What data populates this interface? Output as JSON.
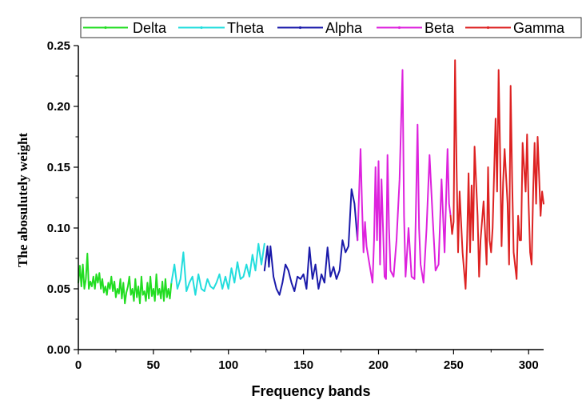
{
  "chart_data": {
    "type": "line",
    "xlabel": "Frequency bands",
    "ylabel": "The abosulutely weight",
    "xlim": [
      0,
      310
    ],
    "ylim": [
      0.0,
      0.25
    ],
    "xticks": [
      "0",
      "50",
      "100",
      "150",
      "200",
      "250",
      "300"
    ],
    "yticks": [
      "0.00",
      "0.05",
      "0.10",
      "0.15",
      "0.20",
      "0.25"
    ],
    "legend_position": "top",
    "grid": false,
    "series": [
      {
        "name": "Delta",
        "color": "#22dd22",
        "x": [
          0,
          1,
          2,
          3,
          4,
          5,
          6,
          7,
          8,
          9,
          10,
          11,
          12,
          13,
          14,
          15,
          16,
          17,
          18,
          19,
          20,
          21,
          22,
          23,
          24,
          25,
          26,
          27,
          28,
          29,
          30,
          31,
          32,
          33,
          34,
          35,
          36,
          37,
          38,
          39,
          40,
          41,
          42,
          43,
          44,
          45,
          46,
          47,
          48,
          49,
          50,
          51,
          52,
          53,
          54,
          55,
          56,
          57,
          58,
          59,
          60,
          61,
          62
        ],
        "y": [
          0.055,
          0.069,
          0.052,
          0.07,
          0.05,
          0.058,
          0.079,
          0.05,
          0.056,
          0.052,
          0.06,
          0.05,
          0.062,
          0.055,
          0.063,
          0.05,
          0.058,
          0.047,
          0.052,
          0.045,
          0.055,
          0.05,
          0.06,
          0.048,
          0.056,
          0.043,
          0.05,
          0.046,
          0.058,
          0.042,
          0.055,
          0.038,
          0.047,
          0.052,
          0.06,
          0.045,
          0.05,
          0.04,
          0.058,
          0.043,
          0.052,
          0.038,
          0.06,
          0.045,
          0.048,
          0.04,
          0.055,
          0.042,
          0.06,
          0.044,
          0.05,
          0.04,
          0.062,
          0.045,
          0.05,
          0.042,
          0.056,
          0.04,
          0.058,
          0.043,
          0.05,
          0.042,
          0.055
        ]
      },
      {
        "name": "Theta",
        "color": "#22dddd",
        "x": [
          62,
          64,
          66,
          68,
          70,
          72,
          74,
          76,
          78,
          80,
          82,
          84,
          86,
          88,
          90,
          92,
          94,
          96,
          98,
          100,
          102,
          104,
          106,
          108,
          110,
          112,
          114,
          116,
          118,
          120,
          122,
          124
        ],
        "y": [
          0.055,
          0.07,
          0.05,
          0.058,
          0.08,
          0.048,
          0.055,
          0.06,
          0.045,
          0.062,
          0.05,
          0.048,
          0.058,
          0.052,
          0.05,
          0.055,
          0.062,
          0.05,
          0.06,
          0.05,
          0.067,
          0.055,
          0.072,
          0.058,
          0.06,
          0.07,
          0.06,
          0.078,
          0.065,
          0.087,
          0.07,
          0.087
        ]
      },
      {
        "name": "Alpha",
        "color": "#1a1aaa",
        "x": [
          124,
          126,
          127,
          128,
          130,
          132,
          134,
          136,
          138,
          140,
          142,
          144,
          146,
          148,
          150,
          152,
          154,
          156,
          158,
          160,
          162,
          164,
          166,
          168,
          170,
          172,
          174,
          176,
          178,
          180,
          182,
          184,
          186
        ],
        "y": [
          0.065,
          0.085,
          0.068,
          0.085,
          0.06,
          0.05,
          0.045,
          0.055,
          0.07,
          0.065,
          0.055,
          0.048,
          0.06,
          0.058,
          0.062,
          0.05,
          0.084,
          0.058,
          0.07,
          0.05,
          0.062,
          0.055,
          0.084,
          0.06,
          0.068,
          0.058,
          0.065,
          0.09,
          0.08,
          0.085,
          0.132,
          0.12,
          0.09
        ]
      },
      {
        "name": "Beta",
        "color": "#dd22dd",
        "x": [
          186,
          188,
          189,
          190,
          191,
          192,
          194,
          196,
          197,
          198,
          199,
          200,
          201,
          202,
          204,
          205,
          206,
          207,
          208,
          210,
          212,
          214,
          216,
          217,
          218,
          219,
          220,
          222,
          224,
          225,
          226,
          227,
          228,
          230,
          232,
          234,
          236,
          238,
          240,
          242,
          244,
          246,
          247,
          248
        ],
        "y": [
          0.09,
          0.165,
          0.12,
          0.08,
          0.105,
          0.085,
          0.07,
          0.055,
          0.09,
          0.15,
          0.09,
          0.155,
          0.07,
          0.14,
          0.06,
          0.058,
          0.16,
          0.1,
          0.065,
          0.06,
          0.09,
          0.14,
          0.23,
          0.11,
          0.06,
          0.08,
          0.1,
          0.06,
          0.058,
          0.12,
          0.185,
          0.1,
          0.07,
          0.055,
          0.1,
          0.16,
          0.11,
          0.065,
          0.07,
          0.14,
          0.08,
          0.165,
          0.12,
          0.11
        ]
      },
      {
        "name": "Gamma",
        "color": "#dd2222",
        "x": [
          248,
          249,
          250,
          251,
          252,
          253,
          254,
          256,
          258,
          259,
          260,
          261,
          262,
          263,
          264,
          266,
          267,
          268,
          270,
          272,
          273,
          274,
          275,
          276,
          278,
          279,
          280,
          281,
          282,
          283,
          284,
          286,
          287,
          288,
          289,
          290,
          292,
          293,
          294,
          295,
          296,
          298,
          299,
          300,
          301,
          302,
          303,
          304,
          305,
          306,
          308,
          309,
          310
        ],
        "y": [
          0.11,
          0.095,
          0.105,
          0.238,
          0.15,
          0.08,
          0.13,
          0.08,
          0.05,
          0.09,
          0.145,
          0.08,
          0.135,
          0.09,
          0.167,
          0.11,
          0.06,
          0.09,
          0.122,
          0.07,
          0.15,
          0.09,
          0.08,
          0.1,
          0.19,
          0.13,
          0.23,
          0.16,
          0.085,
          0.137,
          0.165,
          0.12,
          0.07,
          0.217,
          0.14,
          0.08,
          0.058,
          0.11,
          0.09,
          0.09,
          0.17,
          0.13,
          0.177,
          0.12,
          0.08,
          0.07,
          0.13,
          0.17,
          0.12,
          0.175,
          0.11,
          0.13,
          0.12
        ]
      }
    ]
  }
}
